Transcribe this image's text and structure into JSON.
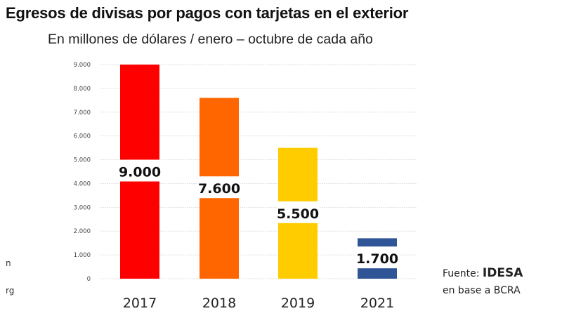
{
  "chart_data": {
    "type": "bar",
    "title": "Egresos de divisas por pagos con tarjetas en el exterior",
    "subtitle": "En millones de dólares / enero – octubre de cada año",
    "categories": [
      "2017",
      "2018",
      "2019",
      "2021"
    ],
    "values": [
      9000,
      7600,
      5500,
      1700
    ],
    "data_labels": [
      "9.000",
      "7.600",
      "5.500",
      "1.700"
    ],
    "colors": [
      "#ff0000",
      "#ff6600",
      "#ffcc00",
      "#2f5597"
    ],
    "xlabel": "",
    "ylabel": "",
    "ylim": [
      0,
      9000
    ],
    "yticks": [
      0,
      1000,
      2000,
      3000,
      4000,
      5000,
      6000,
      7000,
      8000,
      9000
    ],
    "ytick_labels": [
      "0",
      "1.000",
      "2.000",
      "3.000",
      "4.000",
      "5.000",
      "6.000",
      "7.000",
      "8.000",
      "9.000"
    ],
    "grid": true,
    "legend": "none"
  },
  "source": {
    "prefix": "Fuente: ",
    "org": "IDESA",
    "line2": "en base a BCRA"
  },
  "fragments": [
    "n",
    "rg"
  ]
}
